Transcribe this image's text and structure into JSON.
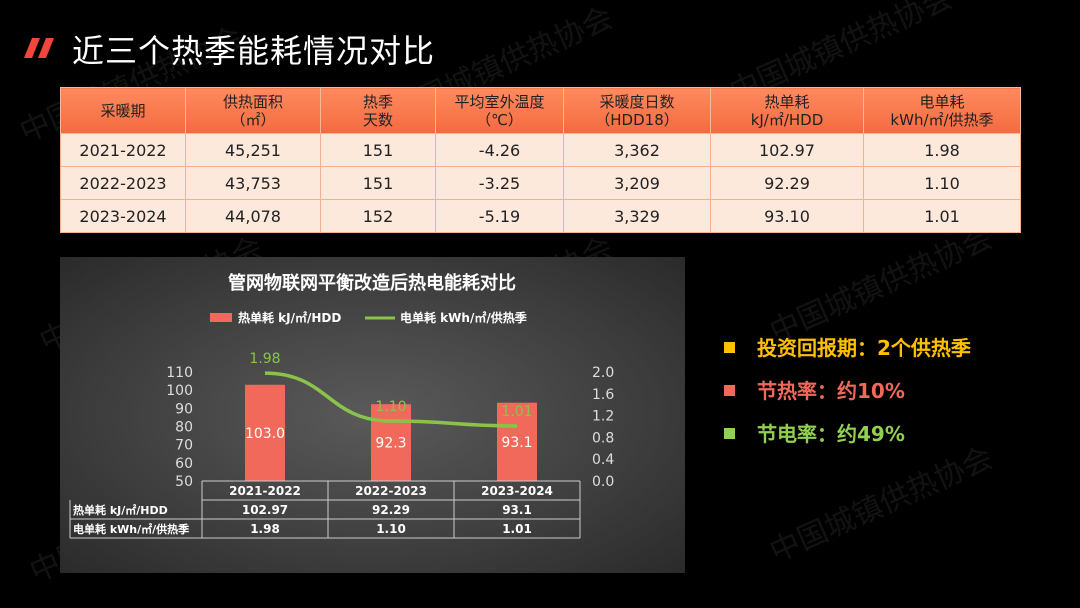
{
  "page": {
    "title": "近三个热季能耗情况对比",
    "watermark": "中国城镇供热协会"
  },
  "table": {
    "headers": [
      [
        "采暖期"
      ],
      [
        "供热面积",
        "（㎡）"
      ],
      [
        "热季",
        "天数"
      ],
      [
        "平均室外温度",
        "（℃）"
      ],
      [
        "采暖度日数",
        "（HDD18）"
      ],
      [
        "热单耗",
        "kJ/㎡/HDD"
      ],
      [
        "电单耗",
        "kWh/㎡/供热季"
      ]
    ],
    "rows": [
      [
        "2021-2022",
        "45,251",
        "151",
        "-4.26",
        "3,362",
        "102.97",
        "1.98"
      ],
      [
        "2022-2023",
        "43,753",
        "151",
        "-3.25",
        "3,209",
        "92.29",
        "1.10"
      ],
      [
        "2023-2024",
        "44,078",
        "152",
        "-5.19",
        "3,329",
        "93.10",
        "1.01"
      ]
    ]
  },
  "chart_data": {
    "type": "bar",
    "title": "管网物联网平衡改造后热电能耗对比",
    "categories": [
      "2021-2022",
      "2022-2023",
      "2023-2024"
    ],
    "series": [
      {
        "name": "热单耗 kJ/㎡/HDD",
        "kind": "bar",
        "axis": "left",
        "values": [
          102.97,
          92.29,
          93.1
        ],
        "labels": [
          "103.0",
          "92.3",
          "93.1"
        ],
        "color": "#f0695a"
      },
      {
        "name": "电单耗 kWh/㎡/供热季",
        "kind": "line",
        "axis": "right",
        "values": [
          1.98,
          1.1,
          1.01
        ],
        "labels": [
          "1.98",
          "1.10",
          "1.01"
        ],
        "color": "#8bc34a"
      }
    ],
    "y_left": {
      "range": [
        50,
        110
      ],
      "ticks": [
        "50",
        "60",
        "70",
        "80",
        "90",
        "100",
        "110"
      ]
    },
    "y_right": {
      "range": [
        0,
        2.0
      ],
      "ticks": [
        "0.0",
        "0.4",
        "0.8",
        "1.2",
        "1.6",
        "2.0"
      ]
    },
    "data_table": {
      "rows": [
        {
          "label": "热单耗 kJ/㎡/HDD",
          "values": [
            "102.97",
            "92.29",
            "93.1"
          ]
        },
        {
          "label": "电单耗 kWh/㎡/供热季",
          "values": [
            "1.98",
            "1.10",
            "1.01"
          ]
        }
      ]
    },
    "legend_position": "top"
  },
  "bullets": [
    {
      "text": "投资回报期：2个供热季",
      "color": "#ffc000"
    },
    {
      "text": "节热率：约10%",
      "color": "#f0695a"
    },
    {
      "text": "节电率：约49%",
      "color": "#92d050"
    }
  ]
}
